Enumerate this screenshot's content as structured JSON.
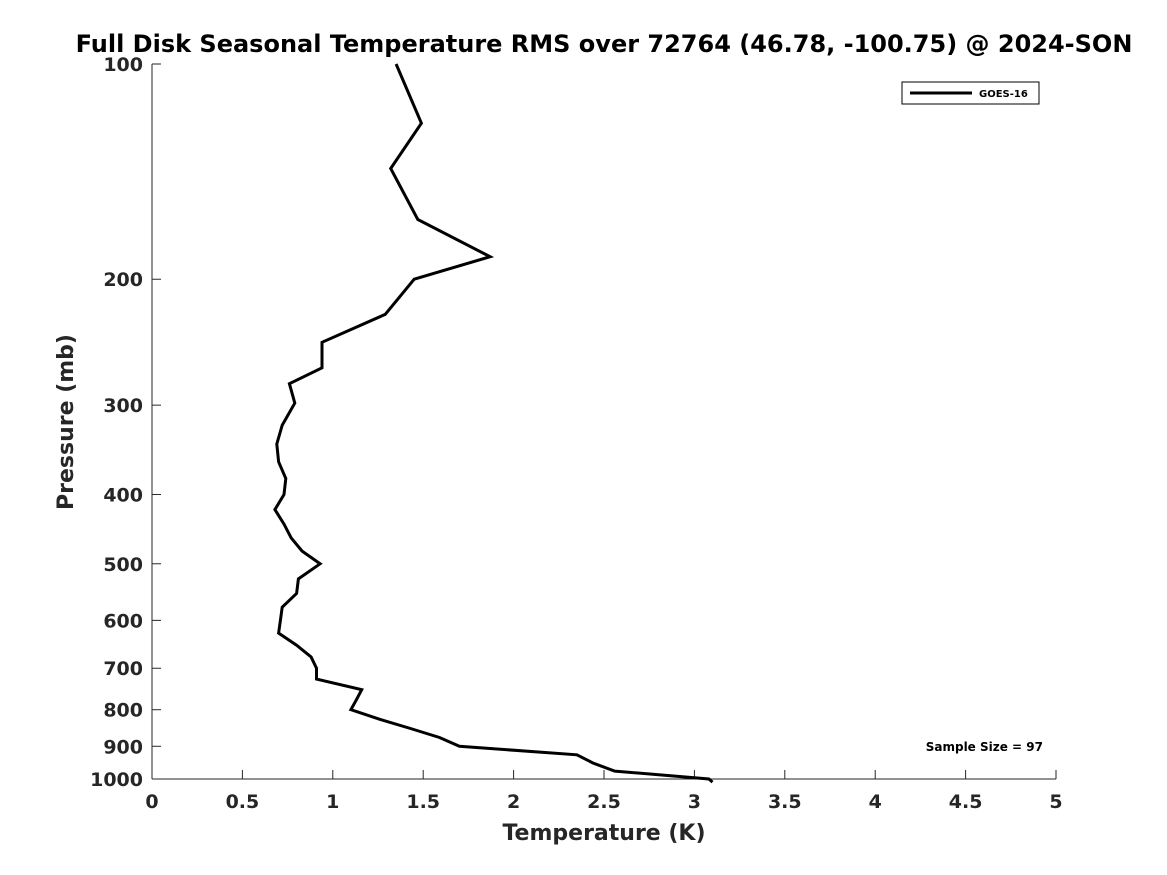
{
  "chart_data": {
    "type": "line",
    "title": "Full Disk Seasonal Temperature RMS over 72764 (46.78, -100.75) @ 2024-SON",
    "xlabel": "Temperature (K)",
    "ylabel": "Pressure (mb)",
    "xlim": [
      0,
      5
    ],
    "ylim": [
      1000,
      100
    ],
    "y_scale": "log",
    "y_reversed": true,
    "grid": false,
    "legend_position": "top-right",
    "x_ticks": [
      "0",
      "0.5",
      "1",
      "1.5",
      "2",
      "2.5",
      "3",
      "3.5",
      "4",
      "4.5",
      "5"
    ],
    "y_ticks": [
      "100",
      "200",
      "300",
      "400",
      "500",
      "600",
      "700",
      "800",
      "900",
      "1000"
    ],
    "series": [
      {
        "name": "GOES-16",
        "color": "#000000",
        "x": [
          1.35,
          1.49,
          1.32,
          1.47,
          1.87,
          1.45,
          1.29,
          0.94,
          0.94,
          0.76,
          0.79,
          0.72,
          0.69,
          0.7,
          0.74,
          0.73,
          0.68,
          0.73,
          0.77,
          0.83,
          0.93,
          0.81,
          0.8,
          0.72,
          0.71,
          0.7,
          0.8,
          0.88,
          0.91,
          0.91,
          1.16,
          1.13,
          1.1,
          1.26,
          1.43,
          1.59,
          1.7,
          2.35,
          2.44,
          2.56,
          3.08,
          3.1
        ],
        "y": [
          100,
          121,
          140,
          165,
          186,
          200,
          224,
          245,
          266,
          280,
          298,
          320,
          340,
          360,
          380,
          400,
          420,
          440,
          460,
          480,
          500,
          525,
          550,
          575,
          600,
          625,
          650,
          675,
          700,
          725,
          750,
          775,
          800,
          825,
          850,
          875,
          900,
          925,
          950,
          975,
          1000,
          1010
        ]
      }
    ],
    "annotations": [
      {
        "text": "Sample Size = 97",
        "position": "bottom-right"
      }
    ]
  }
}
